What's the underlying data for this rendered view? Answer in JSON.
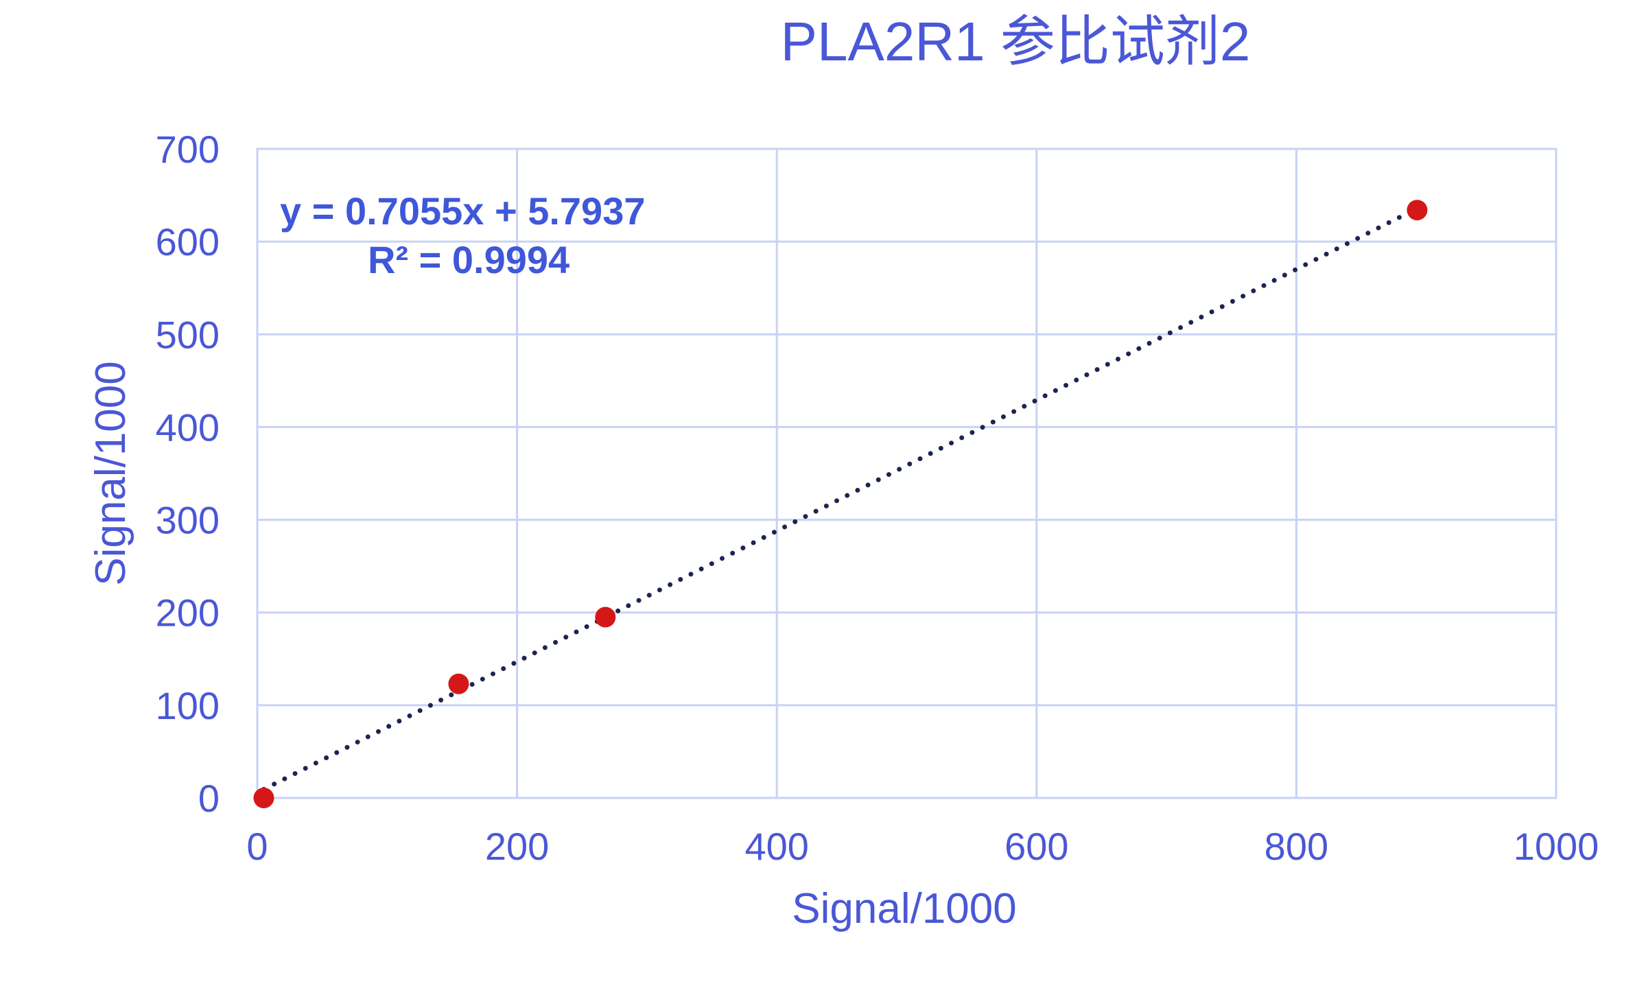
{
  "chart_data": {
    "type": "scatter",
    "title": "PLA2R1 参比试剂2",
    "xlabel": "Signal/1000",
    "ylabel": "Signal/1000",
    "xlim": [
      0,
      1000
    ],
    "ylim": [
      0,
      700
    ],
    "x_ticks": [
      "0",
      "200",
      "400",
      "600",
      "800",
      "1000"
    ],
    "y_ticks": [
      "0",
      "100",
      "200",
      "300",
      "400",
      "500",
      "600",
      "700"
    ],
    "grid": true,
    "legend": "none",
    "series": [
      {
        "x": [
          5,
          155,
          268,
          893
        ],
        "y": [
          0,
          123,
          195,
          634
        ],
        "color": "#d41818"
      }
    ],
    "trendline": {
      "type": "linear",
      "slope": 0.7055,
      "intercept": 5.7937,
      "x_range": [
        5,
        893
      ],
      "color": "#1c2452",
      "style": "dotted"
    },
    "annotations": {
      "equation": "y = 0.7055x + 5.7937",
      "r_squared": "R² = 0.9994"
    }
  },
  "colors": {
    "text": "#4a57d6",
    "annotation": "#3f57d9",
    "grid": "#c9d2f4",
    "point": "#d41818",
    "trendline": "#1c2452"
  }
}
